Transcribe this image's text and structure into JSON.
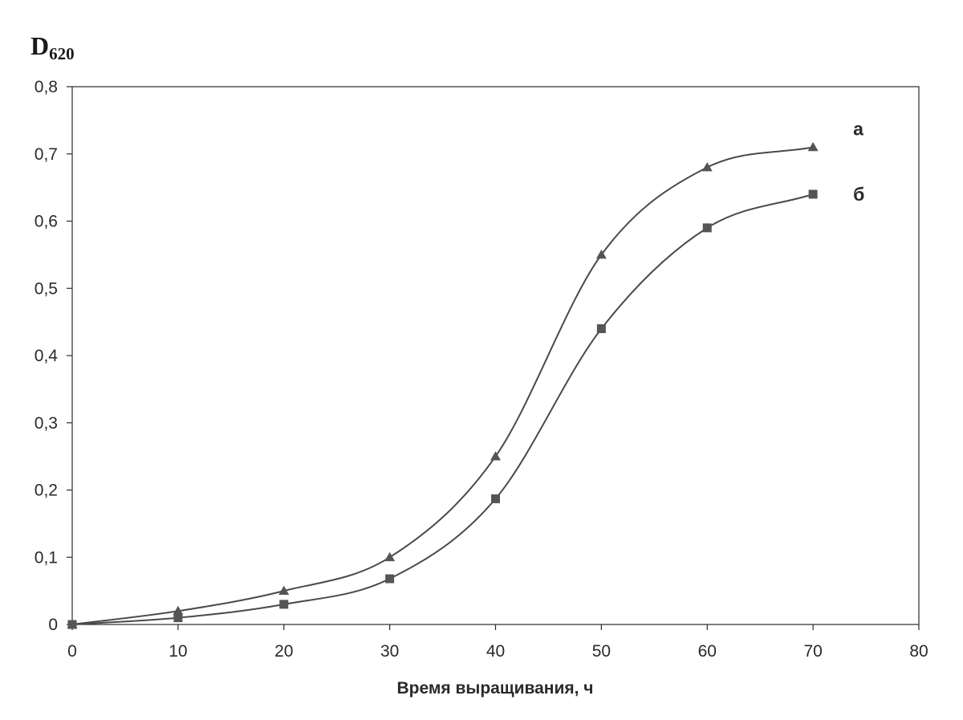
{
  "chart_data": {
    "type": "line",
    "ylabel": "D",
    "ylabel_subscript": "620",
    "xlabel": "Время выращивания, ч",
    "xlim": [
      0,
      80
    ],
    "ylim": [
      0,
      0.8
    ],
    "xticks": [
      "0",
      "10",
      "20",
      "30",
      "40",
      "50",
      "60",
      "70",
      "80"
    ],
    "yticks": [
      "0",
      "0,1",
      "0,2",
      "0,3",
      "0,4",
      "0,5",
      "0,6",
      "0,7",
      "0,8"
    ],
    "grid": false,
    "series": [
      {
        "name": "а",
        "marker": "triangle",
        "x": [
          0,
          10,
          20,
          30,
          40,
          50,
          60,
          70
        ],
        "values": [
          0,
          0.02,
          0.05,
          0.1,
          0.25,
          0.55,
          0.68,
          0.71
        ]
      },
      {
        "name": "б",
        "marker": "square",
        "x": [
          0,
          10,
          20,
          30,
          40,
          50,
          60,
          70
        ],
        "values": [
          0,
          0.01,
          0.03,
          0.068,
          0.187,
          0.44,
          0.59,
          0.64
        ]
      }
    ],
    "colors": {
      "line": "#4a4a4a",
      "marker": "#555555",
      "axis": "#2a2a2a"
    }
  }
}
